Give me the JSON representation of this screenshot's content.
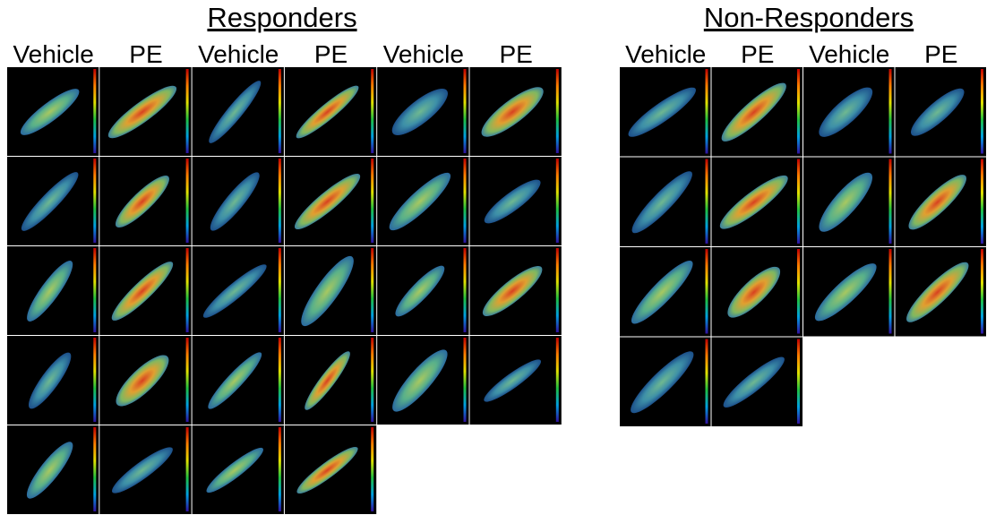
{
  "responders": {
    "title": "Responders",
    "columns": [
      "Vehicle",
      "PE",
      "Vehicle",
      "PE",
      "Vehicle",
      "PE"
    ]
  },
  "non_responders": {
    "title": "Non-Responders",
    "columns": [
      "Vehicle",
      "PE",
      "Vehicle",
      "PE"
    ]
  }
}
